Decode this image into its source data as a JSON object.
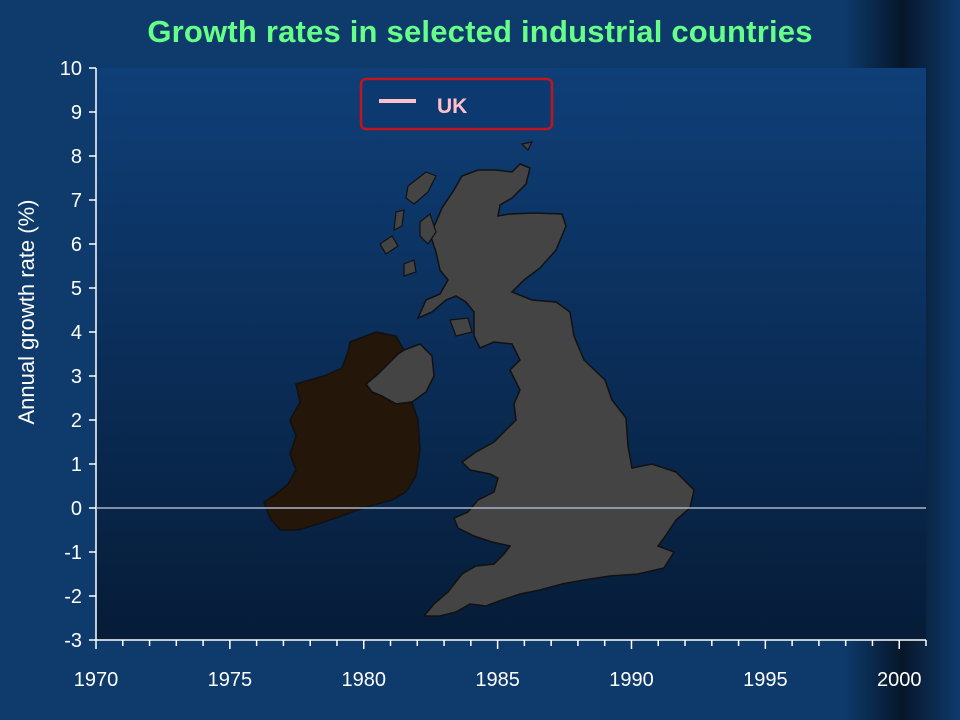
{
  "title": "Growth rates in selected industrial countries",
  "colors": {
    "title": "#66ff88",
    "plot_top": "#0f3f78",
    "plot_bottom": "#061c38",
    "uk_series": "#ffc0cb",
    "legend_border": "#c0141e",
    "britain_land": "#444444",
    "ireland_land": "#241608",
    "zero_line": "#a8b4c8"
  },
  "chart_data": {
    "type": "line",
    "title": "Growth rates in selected industrial countries",
    "xlabel": "",
    "ylabel": "Annual growth rate (%)",
    "xlim": [
      1970,
      2001
    ],
    "ylim": [
      -3,
      10
    ],
    "x_ticks": [
      1970,
      1975,
      1980,
      1985,
      1990,
      1995,
      2000
    ],
    "y_ticks": [
      -3,
      -2,
      -1,
      0,
      1,
      2,
      3,
      4,
      5,
      6,
      7,
      8,
      9,
      10
    ],
    "x_minor_step": 1,
    "zero_line": true,
    "legend_position": "top-center",
    "series": [
      {
        "name": "UK",
        "color": "#ffc0cb",
        "x": [],
        "y": []
      }
    ],
    "background_image": "uk-ireland-map"
  }
}
